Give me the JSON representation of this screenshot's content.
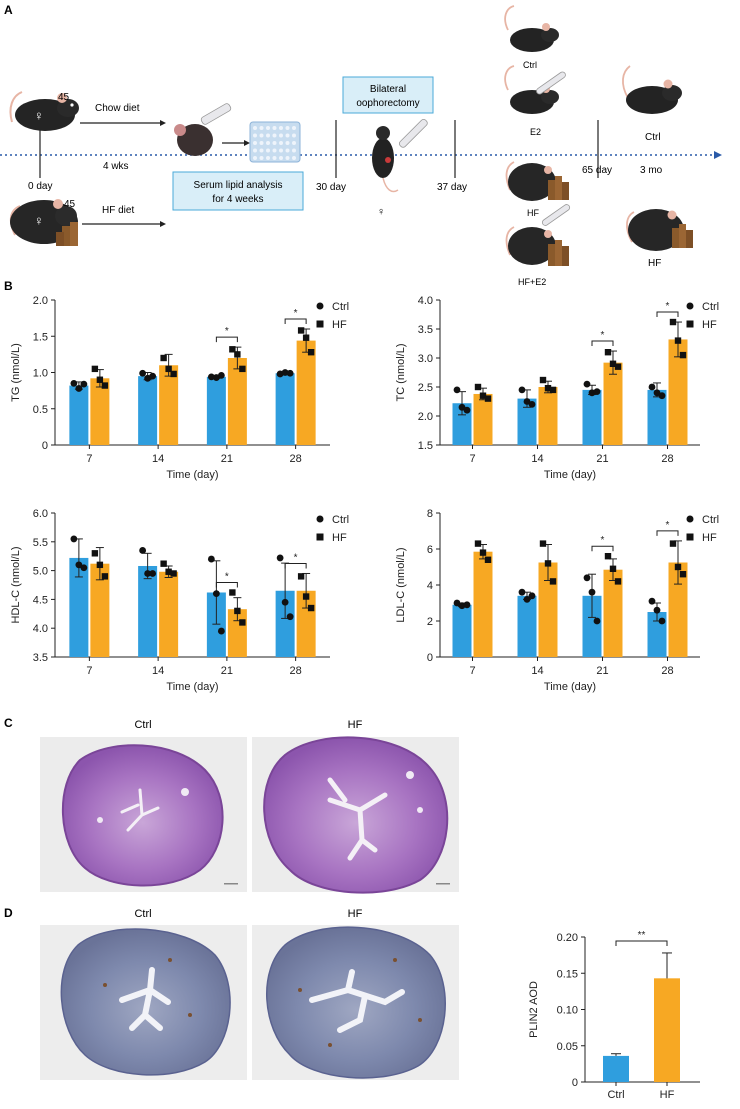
{
  "panel_labels": {
    "a": "A",
    "b": "B",
    "c": "C",
    "d": "D"
  },
  "panel_a": {
    "age_top": "45",
    "age_bottom": "45",
    "diet_chow": "Chow diet",
    "diet_hf": "HF diet",
    "duration": "4 wks",
    "day0": "0 day",
    "serum_line1": "Serum lipid analysis",
    "serum_line2": "for 4 weeks",
    "day30": "30 day",
    "surgery_line1": "Bilateral",
    "surgery_line2": "oophorectomy",
    "day37": "37 day",
    "day65": "65 day",
    "three_mo": "3 mo",
    "group_ctrl": "Ctrl",
    "group_e2": "E2",
    "group_hf": "HF",
    "group_hfe2": "HF+E2",
    "final_ctrl": "Ctrl",
    "final_hf": "HF",
    "colors": {
      "dotted_line": "#2a5aa8",
      "box_fill": "#d9eef8",
      "box_stroke": "#4aaad8",
      "mouse": "#222222"
    }
  },
  "colors": {
    "ctrl": "#2f9ede",
    "hf": "#f7a823"
  },
  "chart_data": [
    {
      "id": "tg",
      "type": "bar",
      "ylabel": "TG (nmol/L)",
      "xlabel": "Time (day)",
      "ylim": [
        0,
        2.0
      ],
      "yticks": [
        "0",
        "0.5",
        "1.0",
        "1.5",
        "2.0"
      ],
      "ytick_values": [
        0,
        0.5,
        1.0,
        1.5,
        2.0
      ],
      "categories": [
        "7",
        "14",
        "21",
        "28"
      ],
      "legend": [
        "Ctrl",
        "HF"
      ],
      "series": [
        {
          "name": "Ctrl",
          "values": [
            0.82,
            0.95,
            0.94,
            0.99
          ],
          "err": [
            0.05,
            0.05,
            0.02,
            0.02
          ],
          "points": [
            [
              0.85,
              0.78,
              0.84
            ],
            [
              0.99,
              0.92,
              0.95
            ],
            [
              0.94,
              0.93,
              0.96
            ],
            [
              0.98,
              1.0,
              0.99
            ]
          ]
        },
        {
          "name": "HF",
          "values": [
            0.92,
            1.1,
            1.2,
            1.44
          ],
          "err": [
            0.12,
            0.15,
            0.15,
            0.16
          ],
          "points": [
            [
              1.05,
              0.9,
              0.82
            ],
            [
              1.2,
              1.05,
              0.98
            ],
            [
              1.32,
              1.25,
              1.05
            ],
            [
              1.58,
              1.48,
              1.28
            ]
          ]
        }
      ],
      "significance": [
        {
          "category": "21",
          "label": "*"
        },
        {
          "category": "28",
          "label": "*"
        }
      ]
    },
    {
      "id": "tc",
      "type": "bar",
      "ylabel": "TC (nmol/L)",
      "xlabel": "Time (day)",
      "ylim": [
        1.5,
        4.0
      ],
      "yticks": [
        "1.5",
        "2.0",
        "2.5",
        "3.0",
        "3.5",
        "4.0"
      ],
      "ytick_values": [
        1.5,
        2.0,
        2.5,
        3.0,
        3.5,
        4.0
      ],
      "categories": [
        "7",
        "14",
        "21",
        "28"
      ],
      "legend": [
        "Ctrl",
        "HF"
      ],
      "series": [
        {
          "name": "Ctrl",
          "values": [
            2.22,
            2.3,
            2.45,
            2.45
          ],
          "err": [
            0.2,
            0.15,
            0.08,
            0.12
          ],
          "points": [
            [
              2.45,
              2.15,
              2.1
            ],
            [
              2.45,
              2.25,
              2.2
            ],
            [
              2.55,
              2.4,
              2.42
            ],
            [
              2.5,
              2.4,
              2.35
            ]
          ]
        },
        {
          "name": "HF",
          "values": [
            2.38,
            2.5,
            2.92,
            3.32
          ],
          "err": [
            0.1,
            0.1,
            0.2,
            0.3
          ],
          "points": [
            [
              2.5,
              2.35,
              2.3
            ],
            [
              2.62,
              2.48,
              2.45
            ],
            [
              3.1,
              2.9,
              2.85
            ],
            [
              3.62,
              3.3,
              3.05
            ]
          ]
        }
      ],
      "significance": [
        {
          "category": "21",
          "label": "*"
        },
        {
          "category": "28",
          "label": "*"
        }
      ]
    },
    {
      "id": "hdl",
      "type": "bar",
      "ylabel": "HDL-C (nmol/L)",
      "xlabel": "Time (day)",
      "ylim": [
        3.5,
        6.0
      ],
      "yticks": [
        "3.5",
        "4.0",
        "4.5",
        "5.0",
        "5.5",
        "6.0"
      ],
      "ytick_values": [
        3.5,
        4.0,
        4.5,
        5.0,
        5.5,
        6.0
      ],
      "categories": [
        "7",
        "14",
        "21",
        "28"
      ],
      "legend": [
        "Ctrl",
        "HF"
      ],
      "series": [
        {
          "name": "Ctrl",
          "values": [
            5.22,
            5.08,
            4.62,
            4.65
          ],
          "err": [
            0.33,
            0.22,
            0.55,
            0.48
          ],
          "points": [
            [
              5.55,
              5.1,
              5.05
            ],
            [
              5.35,
              4.95,
              4.95
            ],
            [
              5.2,
              4.6,
              3.95
            ],
            [
              5.22,
              4.45,
              4.2
            ]
          ]
        },
        {
          "name": "HF",
          "values": [
            5.12,
            4.98,
            4.33,
            4.65
          ],
          "err": [
            0.28,
            0.1,
            0.2,
            0.3
          ],
          "points": [
            [
              5.3,
              5.1,
              4.9
            ],
            [
              5.12,
              4.98,
              4.95
            ],
            [
              4.62,
              4.3,
              4.1
            ],
            [
              4.9,
              4.55,
              4.35
            ]
          ]
        }
      ],
      "significance": [
        {
          "category": "21",
          "label": "*"
        },
        {
          "category": "28",
          "label": "*"
        }
      ]
    },
    {
      "id": "ldl",
      "type": "bar",
      "ylabel": "LDL-C (nmol/L)",
      "xlabel": "Time (day)",
      "ylim": [
        0,
        8
      ],
      "yticks": [
        "0",
        "2",
        "4",
        "6",
        "8"
      ],
      "ytick_values": [
        0,
        2,
        4,
        6,
        8
      ],
      "categories": [
        "7",
        "14",
        "21",
        "28"
      ],
      "legend": [
        "Ctrl",
        "HF"
      ],
      "series": [
        {
          "name": "Ctrl",
          "values": [
            2.9,
            3.4,
            3.4,
            2.5
          ],
          "err": [
            0.1,
            0.2,
            1.2,
            0.5
          ],
          "points": [
            [
              3.0,
              2.85,
              2.9
            ],
            [
              3.6,
              3.2,
              3.4
            ],
            [
              4.4,
              3.6,
              2.0
            ],
            [
              3.1,
              2.6,
              2.0
            ]
          ]
        },
        {
          "name": "HF",
          "values": [
            5.85,
            5.25,
            4.85,
            5.25
          ],
          "err": [
            0.4,
            1.0,
            0.6,
            1.2
          ],
          "points": [
            [
              6.3,
              5.8,
              5.4
            ],
            [
              6.3,
              5.2,
              4.2
            ],
            [
              5.6,
              4.9,
              4.2
            ],
            [
              6.3,
              5.0,
              4.6
            ]
          ]
        }
      ],
      "significance": [
        {
          "category": "21",
          "label": "*"
        },
        {
          "category": "28",
          "label": "*"
        }
      ]
    },
    {
      "id": "plin2",
      "type": "bar",
      "ylabel": "PLIN2 AOD",
      "xlabel": "",
      "ylim": [
        0,
        0.2
      ],
      "yticks": [
        "0",
        "0.05",
        "0.10",
        "0.15",
        "0.20"
      ],
      "ytick_values": [
        0,
        0.05,
        0.1,
        0.15,
        0.2
      ],
      "categories": [
        "Ctrl",
        "HF"
      ],
      "values": [
        0.036,
        0.143
      ],
      "err": [
        0.003,
        0.035
      ],
      "significance": [
        {
          "label": "**"
        }
      ]
    }
  ],
  "panel_c": {
    "label_ctrl": "Ctrl",
    "label_hf": "HF"
  },
  "panel_d": {
    "label_ctrl": "Ctrl",
    "label_hf": "HF"
  }
}
